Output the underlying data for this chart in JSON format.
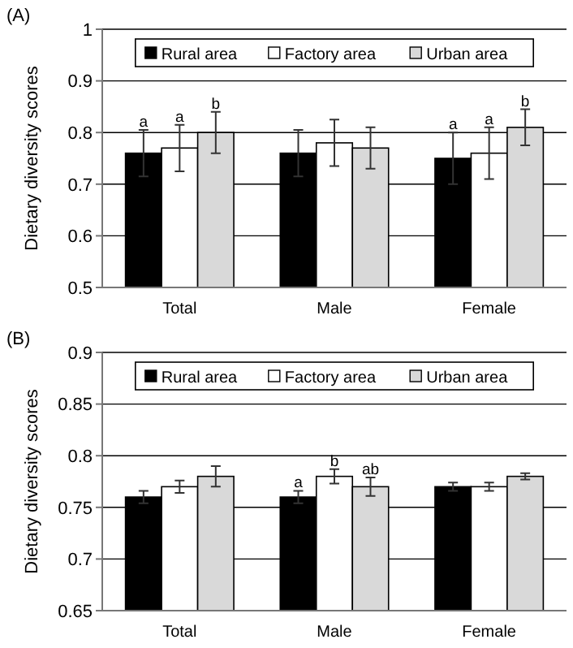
{
  "chart_data": [
    {
      "type": "bar",
      "title": "(A)",
      "ylabel": "Dietary diversity scores",
      "categories": [
        "Total",
        "Male",
        "Female"
      ],
      "ylim": [
        0.5,
        1
      ],
      "yticks": [
        0.5,
        0.6,
        0.7,
        0.8,
        0.9,
        1
      ],
      "grid": "y",
      "legend": "top",
      "series": [
        {
          "name": "Rural area",
          "color": "#000000",
          "values": [
            0.76,
            0.76,
            0.75
          ],
          "errors": [
            0.045,
            0.045,
            0.05
          ],
          "value_labels": [
            "a",
            null,
            "a"
          ]
        },
        {
          "name": "Factory area",
          "color": "#ffffff",
          "values": [
            0.77,
            0.78,
            0.76
          ],
          "errors": [
            0.045,
            0.045,
            0.05
          ],
          "value_labels": [
            "a",
            null,
            "a"
          ]
        },
        {
          "name": "Urban area",
          "color": "#d9d9d9",
          "values": [
            0.8,
            0.77,
            0.81
          ],
          "errors": [
            0.04,
            0.04,
            0.035
          ],
          "value_labels": [
            "b",
            null,
            "b"
          ]
        }
      ]
    },
    {
      "type": "bar",
      "title": "(B)",
      "ylabel": "Dietary diversity scores",
      "categories": [
        "Total",
        "Male",
        "Female"
      ],
      "ylim": [
        0.65,
        0.9
      ],
      "yticks": [
        0.65,
        0.7,
        0.75,
        0.8,
        0.85,
        0.9
      ],
      "grid": "y",
      "legend": "top",
      "series": [
        {
          "name": "Rural area",
          "color": "#000000",
          "values": [
            0.76,
            0.76,
            0.77
          ],
          "errors": [
            0.006,
            0.006,
            0.004
          ],
          "value_labels": [
            null,
            "a",
            null
          ]
        },
        {
          "name": "Factory area",
          "color": "#ffffff",
          "values": [
            0.77,
            0.78,
            0.77
          ],
          "errors": [
            0.006,
            0.007,
            0.004
          ],
          "value_labels": [
            null,
            "b",
            null
          ]
        },
        {
          "name": "Urban area",
          "color": "#d9d9d9",
          "values": [
            0.78,
            0.77,
            0.78
          ],
          "errors": [
            0.01,
            0.009,
            0.003
          ],
          "value_labels": [
            null,
            "ab",
            null
          ]
        }
      ]
    }
  ]
}
